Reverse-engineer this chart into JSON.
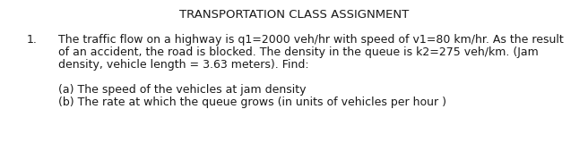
{
  "title": "TRANSPORTATION CLASS ASSIGNMENT",
  "title_fontsize": 9.5,
  "body_fontsize": 9.0,
  "background_color": "#ffffff",
  "text_color": "#1a1a1a",
  "line1_number": "1.",
  "line1_text": "The traffic flow on a highway is q1=2000 veh/hr with speed of v1=80 km/hr. As the result",
  "line2_text": "of an accident, the road is blocked. The density in the queue is k2=275 veh/km. (Jam",
  "line3_text": "density, vehicle length = 3.63 meters). Find:",
  "line4_text": "(a) The speed of the vehicles at jam density",
  "line5_text": "(b) The rate at which the queue grows (in units of vehicles per hour )",
  "fig_width": 6.56,
  "fig_height": 1.88,
  "dpi": 100
}
